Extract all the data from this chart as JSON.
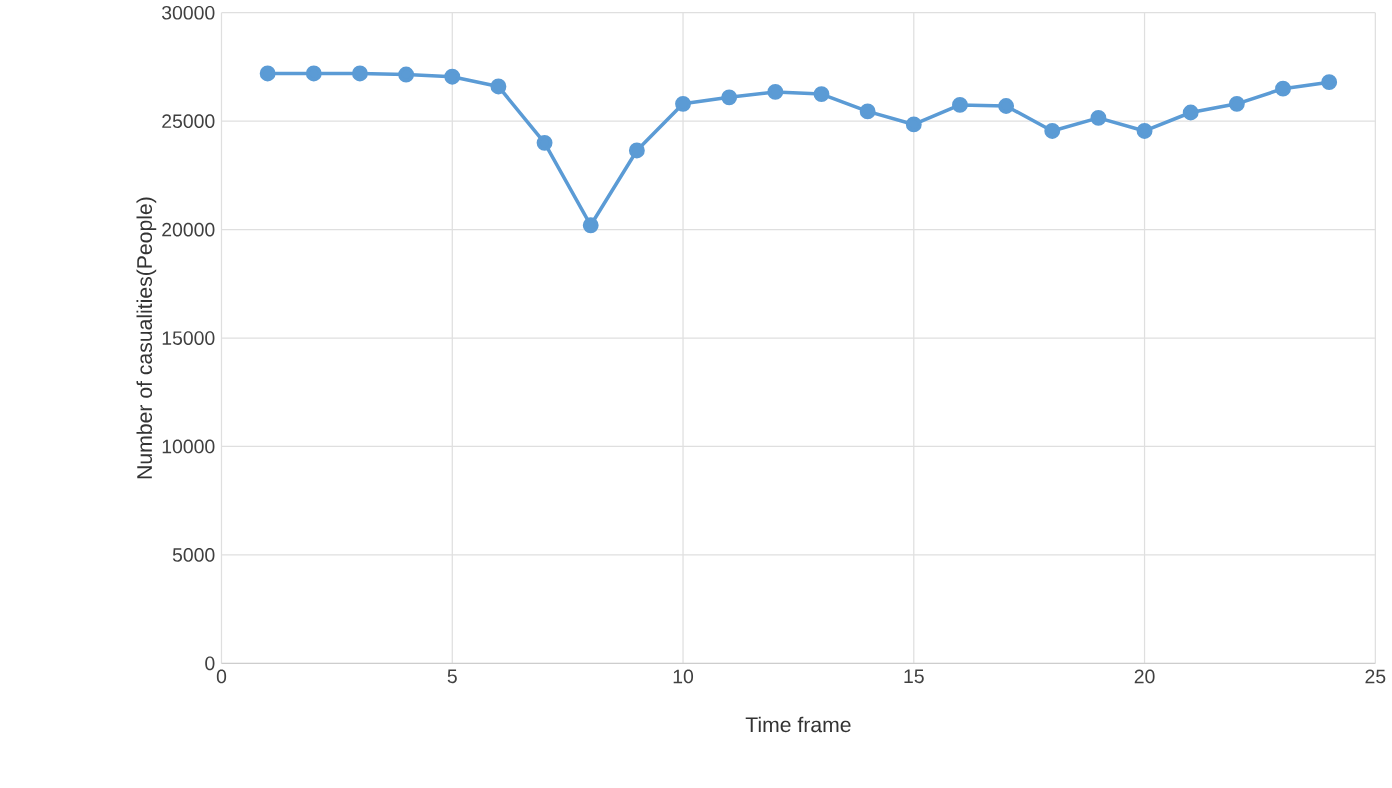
{
  "chart_data": {
    "type": "line",
    "xlabel": "Time frame",
    "ylabel": "Number of casualities(People)",
    "x": [
      1,
      2,
      3,
      4,
      5,
      6,
      7,
      8,
      9,
      10,
      11,
      12,
      13,
      14,
      15,
      16,
      17,
      18,
      19,
      20,
      21,
      22,
      23,
      24
    ],
    "series": [
      {
        "color": "#5b9bd5",
        "values": [
          27200,
          27200,
          27200,
          27150,
          27050,
          26600,
          24000,
          20200,
          23650,
          25800,
          26100,
          26350,
          26250,
          25450,
          24850,
          25750,
          25700,
          24550,
          25150,
          24550,
          25400,
          25800,
          26500,
          26800
        ]
      }
    ],
    "xlim": [
      0,
      25
    ],
    "xticks": [
      0,
      5,
      10,
      15,
      20,
      25
    ],
    "ylim": [
      0,
      30000
    ],
    "yticks": [
      0,
      5000,
      10000,
      15000,
      20000,
      25000,
      30000
    ],
    "grid": true,
    "marker": "circle",
    "line_style": "solid"
  }
}
